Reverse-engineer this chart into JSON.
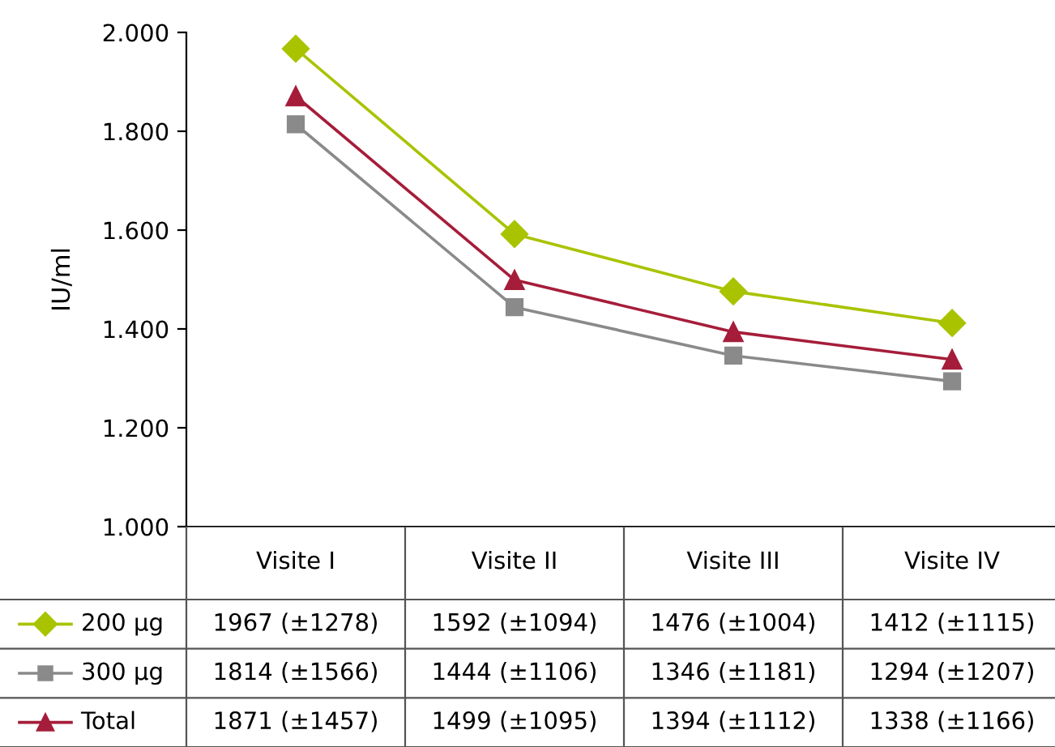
{
  "chart_data": {
    "type": "line",
    "ylabel": "IU/ml",
    "categories": [
      "Visite I",
      "Visite II",
      "Visite III",
      "Visite IV"
    ],
    "series": [
      {
        "name": "200 µg",
        "color": "#a9c301",
        "marker": "diamond",
        "values": [
          1967,
          1592,
          1476,
          1412
        ],
        "value_labels": [
          "1967 (±1278)",
          "1592 (±1094)",
          "1476 (±1004)",
          "1412 (±1115)"
        ]
      },
      {
        "name": "300 µg",
        "color": "#8a8a8a",
        "marker": "square",
        "values": [
          1814,
          1444,
          1346,
          1294
        ],
        "value_labels": [
          "1814 (±1566)",
          "1444 (±1106)",
          "1346 (±1181)",
          "1294 (±1207)"
        ]
      },
      {
        "name": "Total",
        "color": "#a51d3a",
        "marker": "triangle",
        "values": [
          1871,
          1499,
          1394,
          1338
        ],
        "value_labels": [
          "1871 (±1457)",
          "1499 (±1095)",
          "1394 (±1112)",
          "1338 (±1166)"
        ]
      }
    ],
    "ylim": [
      1000,
      2000
    ],
    "yticks": [
      {
        "value": 1000,
        "label": "1.000"
      },
      {
        "value": 1200,
        "label": "1.200"
      },
      {
        "value": 1400,
        "label": "1.400"
      },
      {
        "value": 1600,
        "label": "1.600"
      },
      {
        "value": 1800,
        "label": "1.800"
      },
      {
        "value": 2000,
        "label": "2.000"
      }
    ],
    "grid": false,
    "legend": "bottom left",
    "line_style": "solid"
  }
}
